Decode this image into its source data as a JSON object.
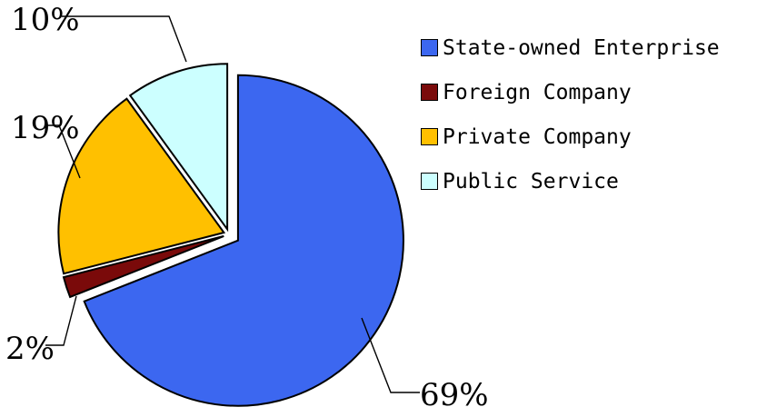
{
  "chart_data": {
    "type": "pie",
    "title": "",
    "legend_position": "right",
    "exploded": true,
    "series": [
      {
        "name": "State-owned Enterprise",
        "value": 69,
        "label": "69%",
        "color": "#3C67F0"
      },
      {
        "name": "Foreign Company",
        "value": 2,
        "label": "2%",
        "color": "#7A0A0A"
      },
      {
        "name": "Private Company",
        "value": 19,
        "label": "19%",
        "color": "#FFC000"
      },
      {
        "name": "Public Service",
        "value": 10,
        "label": "10%",
        "color": "#CCFFFF"
      }
    ]
  }
}
